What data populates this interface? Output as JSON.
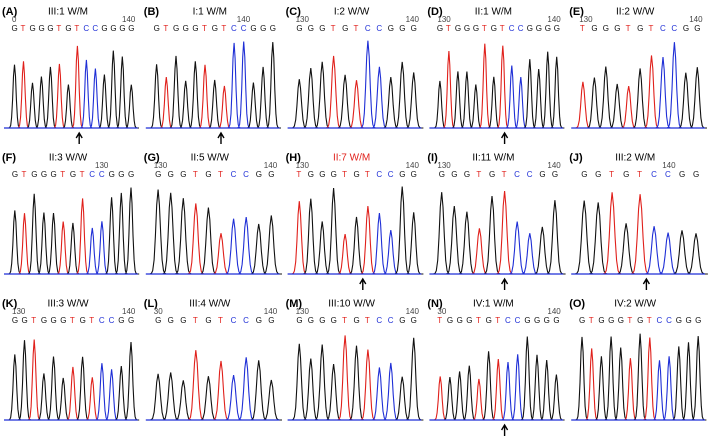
{
  "panels": [
    {
      "label": "(A)",
      "title": "III:1 W/M",
      "numbers": [
        "0",
        "140"
      ],
      "sequence": "GTGGGTGTCCGGGG",
      "arrow": true
    },
    {
      "label": "(B)",
      "title": "I:1 W/M",
      "numbers": [
        "140"
      ],
      "sequence": "GTGGGTGTCCGGG",
      "arrow": true
    },
    {
      "label": "(C)",
      "title": "I:2 W/W",
      "numbers": [
        "130",
        "140"
      ],
      "sequence": "GGGTGTCCGGG",
      "arrow": false
    },
    {
      "label": "(D)",
      "title": "II:1 W/M",
      "numbers": [
        "130",
        "140"
      ],
      "sequence": "GTGGGTGTCCGGGG",
      "arrow": true
    },
    {
      "label": "(E)",
      "title": "II:2 W/W",
      "numbers": [
        "130",
        "140"
      ],
      "sequence": "TGGGTGTCCGG",
      "arrow": false
    },
    {
      "label": "(F)",
      "title": "II:3 W/W",
      "numbers": [
        "130"
      ],
      "sequence": "GTGGGTGTCCGGG",
      "arrow": false
    },
    {
      "label": "(G)",
      "title": "II:5 W/W",
      "numbers": [
        "130",
        "140"
      ],
      "sequence": "GGGTGTCCGG",
      "arrow": false
    },
    {
      "label": "(H)",
      "title": "II:7 W/M",
      "title_color": "#e0201b",
      "numbers": [
        "130",
        "140"
      ],
      "sequence": "TGGGTGTCCGG",
      "arrow": true
    },
    {
      "label": "(I)",
      "title": "II:11 W/M",
      "numbers": [
        "130",
        "140"
      ],
      "sequence": "GGGTGTCCGG",
      "arrow": true
    },
    {
      "label": "(J)",
      "title": "III:2 W/M",
      "numbers": [
        "140"
      ],
      "sequence": "GGTGTCCGG",
      "arrow": true
    },
    {
      "label": "(K)",
      "title": "III:3 W/W",
      "numbers": [
        "130",
        "140"
      ],
      "sequence": "GGTGGGTGTCCGG",
      "arrow": false
    },
    {
      "label": "(L)",
      "title": "III:4 W/W",
      "numbers": [
        "30",
        "140"
      ],
      "sequence": "GGGTGTCCGG",
      "arrow": false
    },
    {
      "label": "(M)",
      "title": "III:10 W/W",
      "numbers": [
        "130",
        "140"
      ],
      "sequence": "GGGGTGTCCGG",
      "arrow": false
    },
    {
      "label": "(N)",
      "title": "IV:1 W/M",
      "numbers": [
        "30",
        "140"
      ],
      "sequence": "TGGGTGTCCGGGG",
      "arrow": true
    },
    {
      "label": "(O)",
      "title": "IV:2 W/W",
      "numbers": [],
      "sequence": "GTGGGTGTCCGGG",
      "arrow": false
    }
  ]
}
